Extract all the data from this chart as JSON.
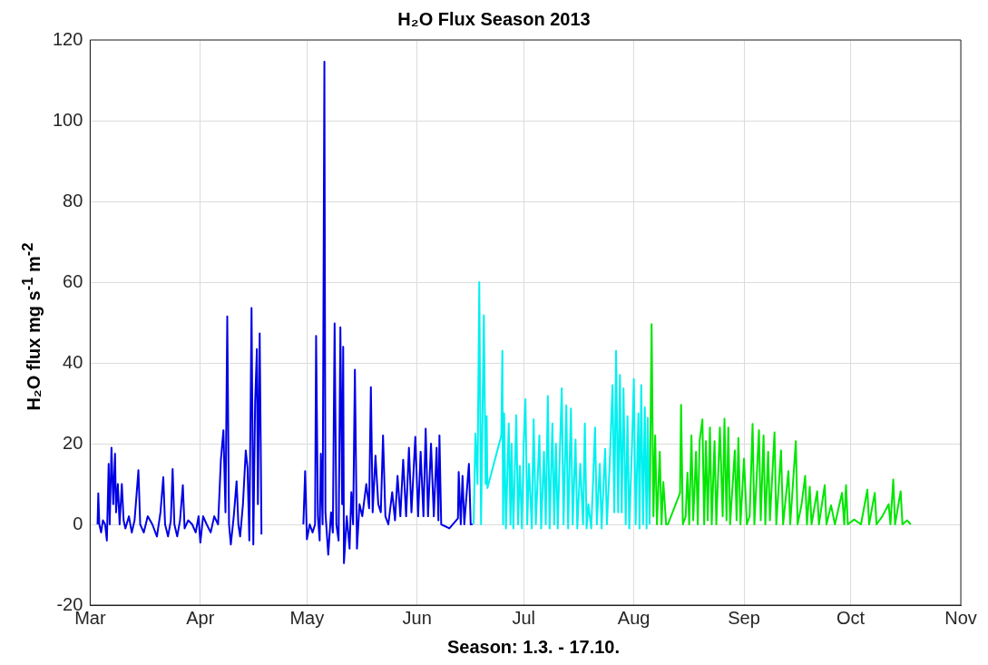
{
  "chart_data": {
    "type": "line",
    "title": "H₂O Flux Season 2013",
    "xlabel": "Season: 1.3. - 17.10.",
    "ylabel": "H₂O flux mg s$^{-1}$ m$^{-2}$",
    "xlim": [
      "2013-03-01",
      "2013-11-01"
    ],
    "xticks": [
      {
        "value": "2013-03-01",
        "label": "Mar"
      },
      {
        "value": "2013-04-01",
        "label": "Apr"
      },
      {
        "value": "2013-05-01",
        "label": "May"
      },
      {
        "value": "2013-06-01",
        "label": "Jun"
      },
      {
        "value": "2013-07-01",
        "label": "Jul"
      },
      {
        "value": "2013-08-01",
        "label": "Aug"
      },
      {
        "value": "2013-09-01",
        "label": "Sep"
      },
      {
        "value": "2013-10-01",
        "label": "Oct"
      },
      {
        "value": "2013-11-01",
        "label": "Nov"
      }
    ],
    "ylim": [
      -20,
      120
    ],
    "yticks": [
      -20,
      0,
      20,
      40,
      60,
      80,
      100,
      120
    ],
    "grid": true,
    "legend": false,
    "marker": "none",
    "line_style": "solid",
    "series": [
      {
        "color": "#0000e6",
        "x": [
          "2013-03-03T02:00",
          "2013-03-03T07:00",
          "2013-03-03T14:00",
          "2013-03-04T02:00",
          "2013-03-04T14:00",
          "2013-03-05T05:00",
          "2013-03-05T17:00",
          "2013-03-06T05:00",
          "2013-03-06T12:00",
          "2013-03-07T00:00",
          "2013-03-07T12:00",
          "2013-03-08T00:00",
          "2013-03-08T07:00",
          "2013-03-08T19:00",
          "2013-03-09T07:00",
          "2013-03-09T22:00",
          "2013-03-10T10:00",
          "2013-03-10T22:00",
          "2013-03-11T22:00",
          "2013-03-12T17:00",
          "2013-03-13T12:00",
          "2013-03-14T14:00",
          "2013-03-15T02:00",
          "2013-03-16T02:00",
          "2013-03-17T05:00",
          "2013-03-18T12:00",
          "2013-03-19T19:00",
          "2013-03-20T19:00",
          "2013-03-21T14:00",
          "2013-03-22T02:00",
          "2013-03-22T22:00",
          "2013-03-23T17:00",
          "2013-03-24T05:00",
          "2013-03-24T17:00",
          "2013-03-25T12:00",
          "2013-03-26T07:00",
          "2013-03-27T02:00",
          "2013-03-27T14:00",
          "2013-03-28T14:00",
          "2013-03-29T17:00",
          "2013-03-30T17:00",
          "2013-03-31T12:00",
          "2013-04-01T00:00",
          "2013-04-01T19:00",
          "2013-04-02T19:00",
          "2013-04-03T22:00",
          "2013-04-04T22:00",
          "2013-04-06T00:00",
          "2013-04-06T19:00",
          "2013-04-07T12:00",
          "2013-04-08T02:00",
          "2013-04-08T14:00",
          "2013-04-09T02:00",
          "2013-04-09T14:00",
          "2013-04-10T10:00",
          "2013-04-11T05:00",
          "2013-04-11T17:00",
          "2013-04-12T05:00",
          "2013-04-13T00:00",
          "2013-04-13T19:00",
          "2013-04-14T07:00",
          "2013-04-14T19:00",
          "2013-04-15T10:00",
          "2013-04-15T22:00",
          "2013-04-16T10:00",
          "2013-04-16T22:00",
          "2013-04-17T05:00",
          "2013-04-17T17:00",
          "2013-04-18T00:00",
          "2013-04-18T05:00",
          "2013-04-24T00:00",
          "2013-04-30T00:00",
          "2013-04-30T12:00",
          "2013-05-01T00:00",
          "2013-05-01T19:00",
          "2013-05-02T14:00",
          "2013-05-03T07:00",
          "2013-05-03T14:00",
          "2013-05-04T02:00",
          "2013-05-04T14:00",
          "2013-05-04T22:00",
          "2013-05-05T10:00",
          "2013-05-05T22:00",
          "2013-05-06T05:00",
          "2013-05-07T00:00",
          "2013-05-07T19:00",
          "2013-05-08T07:00",
          "2013-05-08T19:00",
          "2013-05-09T07:00",
          "2013-05-09T22:00",
          "2013-05-10T10:00",
          "2013-05-10T22:00",
          "2013-05-11T05:00",
          "2013-05-11T10:00",
          "2013-05-12T05:00",
          "2013-05-13T00:00",
          "2013-05-13T12:00",
          "2013-05-14T00:00",
          "2013-05-14T12:00",
          "2013-05-15T02:00",
          "2013-05-15T19:00",
          "2013-05-16T14:00",
          "2013-05-17T17:00",
          "2013-05-18T12:00",
          "2013-05-19T00:00",
          "2013-05-19T12:00",
          "2013-05-20T07:00",
          "2013-05-21T02:00",
          "2013-05-21T19:00",
          "2013-05-22T10:00",
          "2013-05-23T02:00",
          "2013-05-23T22:00",
          "2013-05-25T00:00",
          "2013-05-25T19:00",
          "2013-05-26T12:00",
          "2013-05-27T07:00",
          "2013-05-28T02:00",
          "2013-05-28T22:00",
          "2013-05-29T17:00",
          "2013-05-30T10:00",
          "2013-05-31T12:00",
          "2013-06-01T07:00",
          "2013-06-02T00:00",
          "2013-06-02T19:00",
          "2013-06-03T10:00",
          "2013-06-04T02:00",
          "2013-06-04T22:00",
          "2013-06-05T17:00",
          "2013-06-06T12:00",
          "2013-06-07T00:00",
          "2013-06-07T07:00",
          "2013-06-07T19:00",
          "2013-06-10T02:00",
          "2013-06-12T12:00",
          "2013-06-12T17:00",
          "2013-06-13T07:00",
          "2013-06-13T19:00",
          "2013-06-14T07:00",
          "2013-06-15T14:00",
          "2013-06-16T02:00",
          "2013-06-16T14:00"
        ],
        "values": [
          0,
          7.7,
          0,
          -2,
          1,
          0,
          -4,
          15,
          0,
          19,
          5,
          17.5,
          3,
          10,
          0,
          10,
          1,
          -1,
          2,
          -2,
          1,
          13.4,
          0,
          -2,
          2,
          0,
          -3,
          3,
          11.7,
          0,
          -3,
          1,
          13.7,
          0,
          -3,
          1,
          9.7,
          -1,
          1,
          0,
          -2,
          2,
          -4.5,
          2,
          0,
          -2,
          2,
          0,
          16,
          23.3,
          3,
          51.5,
          0,
          -5,
          2,
          10.7,
          0,
          -3,
          5,
          18.3,
          14,
          -4,
          53.6,
          -5,
          30,
          43.4,
          5,
          47.3,
          20,
          -2.5,
          null,
          0,
          13.2,
          -3.7,
          0,
          -2,
          0,
          46.7,
          2,
          -4,
          17.5,
          0,
          114.6,
          3,
          -7.5,
          3,
          -2,
          49.8,
          0,
          -4,
          48.8,
          5,
          44,
          -9.6,
          2,
          -6,
          8,
          0,
          38.3,
          -6,
          5,
          2,
          10,
          4,
          34,
          3,
          17,
          5,
          3,
          22,
          2,
          0,
          8,
          1,
          12,
          2,
          16,
          2,
          19,
          3,
          21.7,
          2,
          18,
          2,
          23.7,
          2,
          20,
          2,
          19,
          1,
          22,
          0,
          -1,
          1.5,
          13,
          0,
          12,
          0,
          15,
          0,
          0
        ]
      },
      {
        "color": "#00f0f0",
        "x": [
          "2013-06-16T22:00",
          "2013-06-17T10:00",
          "2013-06-18T00:00",
          "2013-06-18T12:00",
          "2013-06-19T00:00",
          "2013-06-19T19:00",
          "2013-06-20T07:00",
          "2013-06-20T14:00",
          "2013-06-20T19:00",
          "2013-06-24T17:00",
          "2013-06-25T00:00",
          "2013-06-25T05:00",
          "2013-06-25T12:00",
          "2013-06-26T00:00",
          "2013-06-26T19:00",
          "2013-06-27T07:00",
          "2013-06-27T14:00",
          "2013-06-28T02:00",
          "2013-06-28T22:00",
          "2013-06-29T10:00",
          "2013-06-29T22:00",
          "2013-06-30T12:00",
          "2013-07-01T00:00",
          "2013-07-01T12:00",
          "2013-07-02T00:00",
          "2013-07-02T12:00",
          "2013-07-03T07:00",
          "2013-07-03T19:00",
          "2013-07-04T10:00",
          "2013-07-05T10:00",
          "2013-07-05T22:00",
          "2013-07-06T17:00",
          "2013-07-07T05:00",
          "2013-07-07T19:00",
          "2013-07-08T07:00",
          "2013-07-09T02:00",
          "2013-07-09T14:00",
          "2013-07-10T02:00",
          "2013-07-10T14:00",
          "2013-07-11T02:00",
          "2013-07-11T17:00",
          "2013-07-12T05:00",
          "2013-07-13T00:00",
          "2013-07-13T12:00",
          "2013-07-14T07:00",
          "2013-07-14T19:00",
          "2013-07-15T14:00",
          "2013-07-16T02:00",
          "2013-07-16T22:00",
          "2013-07-17T17:00",
          "2013-07-18T05:00",
          "2013-07-18T17:00",
          "2013-07-19T05:00",
          "2013-07-20T00:00",
          "2013-07-20T12:00",
          "2013-07-21T02:00",
          "2013-07-21T14:00",
          "2013-07-22T10:00",
          "2013-07-22T22:00",
          "2013-07-23T22:00",
          "2013-07-24T10:00",
          "2013-07-25T05:00",
          "2013-07-26T00:00",
          "2013-07-26T12:00",
          "2013-07-27T00:00",
          "2013-07-27T14:00",
          "2013-07-28T02:00",
          "2013-07-28T14:00",
          "2013-07-29T02:00",
          "2013-07-29T17:00",
          "2013-07-30T05:00",
          "2013-07-30T17:00",
          "2013-07-31T12:00",
          "2013-08-01T00:00",
          "2013-08-01T12:00",
          "2013-08-02T07:00",
          "2013-08-02T14:00",
          "2013-08-03T02:00",
          "2013-08-03T14:00",
          "2013-08-04T02:00",
          "2013-08-04T14:00",
          "2013-08-04T22:00",
          "2013-08-05T10:00"
        ],
        "values": [
          0,
          22.5,
          10,
          60,
          0,
          51.8,
          10,
          26.8,
          9,
          22,
          43,
          0,
          27.5,
          -1,
          25,
          0,
          20,
          -1,
          27,
          0,
          14.5,
          -1,
          20,
          31,
          0,
          15,
          -1,
          26,
          0,
          22,
          -1,
          18,
          0,
          31.8,
          -1,
          25,
          0,
          20,
          -1,
          15,
          33.7,
          0,
          29.5,
          -1,
          28.7,
          0,
          21,
          -1,
          15,
          0,
          25,
          -1,
          5,
          -1,
          10,
          24,
          0,
          15,
          -1,
          18.7,
          0,
          15,
          34.5,
          3,
          43,
          3,
          37,
          3,
          33.7,
          0,
          26.8,
          -1,
          20,
          36,
          0,
          27.5,
          -1,
          34.5,
          0,
          29,
          -1,
          26.4,
          0
        ]
      },
      {
        "color": "#00e600",
        "x": [
          "2013-08-05T10:00",
          "2013-08-06T00:00",
          "2013-08-06T12:00",
          "2013-08-07T00:00",
          "2013-08-07T12:00",
          "2013-08-08T07:00",
          "2013-08-08T19:00",
          "2013-08-09T07:00",
          "2013-08-10T02:00",
          "2013-08-10T14:00",
          "2013-08-14T00:00",
          "2013-08-14T07:00",
          "2013-08-14T19:00",
          "2013-08-15T14:00",
          "2013-08-16T02:00",
          "2013-08-16T14:00",
          "2013-08-17T05:00",
          "2013-08-17T17:00",
          "2013-08-18T12:00",
          "2013-08-19T00:00",
          "2013-08-19T12:00",
          "2013-08-20T07:00",
          "2013-08-20T19:00",
          "2013-08-21T07:00",
          "2013-08-21T19:00",
          "2013-08-22T10:00",
          "2013-08-22T22:00",
          "2013-08-23T17:00",
          "2013-08-24T05:00",
          "2013-08-25T05:00",
          "2013-08-26T00:00",
          "2013-08-26T12:00",
          "2013-08-27T02:00",
          "2013-08-27T14:00",
          "2013-08-28T02:00",
          "2013-08-29T10:00",
          "2013-08-29T22:00",
          "2013-08-30T10:00",
          "2013-08-31T00:00",
          "2013-09-01T00:00",
          "2013-09-01T19:00",
          "2013-09-02T14:00",
          "2013-09-03T10:00",
          "2013-09-03T22:00",
          "2013-09-05T05:00",
          "2013-09-05T17:00",
          "2013-09-06T12:00",
          "2013-09-07T00:00",
          "2013-09-07T19:00",
          "2013-09-08T07:00",
          "2013-09-09T14:00",
          "2013-09-10T02:00",
          "2013-09-11T10:00",
          "2013-09-12T00:00",
          "2013-09-13T12:00",
          "2013-09-14T00:00",
          "2013-09-15T14:00",
          "2013-09-16T02:00",
          "2013-09-17T05:00",
          "2013-09-18T05:00",
          "2013-09-18T17:00",
          "2013-09-19T12:00",
          "2013-09-20T00:00",
          "2013-09-21T14:00",
          "2013-09-22T02:00",
          "2013-09-23T17:00",
          "2013-09-24T05:00",
          "2013-09-25T12:00",
          "2013-09-26T14:00",
          "2013-09-28T14:00",
          "2013-09-29T05:00",
          "2013-09-29T17:00",
          "2013-09-30T05:00",
          "2013-10-02T00:00",
          "2013-10-03T22:00",
          "2013-10-05T17:00",
          "2013-10-06T05:00",
          "2013-10-07T19:00",
          "2013-10-08T07:00",
          "2013-10-09T22:00",
          "2013-10-11T17:00",
          "2013-10-12T05:00",
          "2013-10-13T00:00",
          "2013-10-13T12:00",
          "2013-10-15T02:00",
          "2013-10-15T14:00",
          "2013-10-16T22:00",
          "2013-10-17T22:00"
        ],
        "values": [
          0,
          49.6,
          2,
          22,
          0,
          18,
          0,
          10.5,
          0,
          0,
          7.8,
          29.6,
          0,
          2,
          12.8,
          0,
          22,
          1,
          18,
          0,
          20.6,
          26,
          0,
          20.6,
          1,
          24,
          0,
          20.6,
          0,
          24,
          2,
          26.2,
          1,
          24,
          0,
          18.3,
          1,
          21.4,
          0,
          16.3,
          0,
          2,
          24.9,
          0,
          23.3,
          1,
          22,
          0,
          18,
          1,
          22.8,
          0,
          18.3,
          0,
          13.2,
          0,
          20.6,
          0,
          5,
          12,
          0,
          9.3,
          0,
          8.2,
          0,
          9.7,
          0,
          4.7,
          0,
          7.8,
          0,
          9.7,
          0,
          1.2,
          0,
          8.6,
          0,
          7.8,
          0,
          2,
          5,
          0,
          11.1,
          0,
          8.2,
          0,
          1,
          0
        ]
      }
    ]
  }
}
